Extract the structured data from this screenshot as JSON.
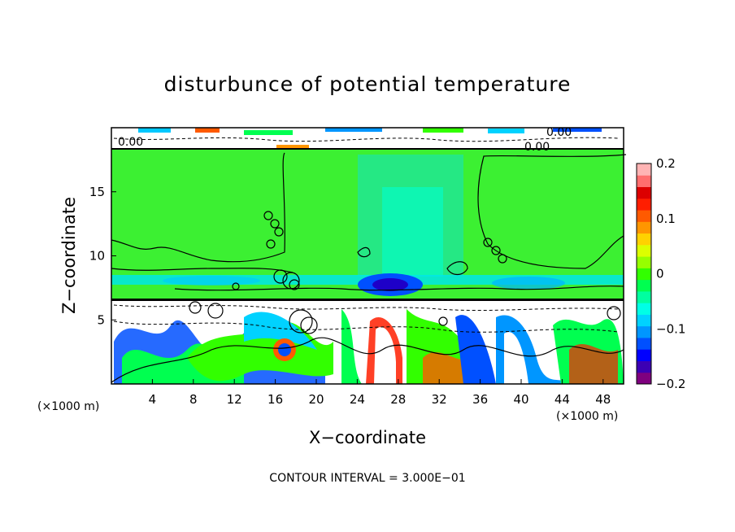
{
  "chart_data": {
    "type": "heatmap",
    "title": "disturbunce of potential temperature",
    "xlabel": "X−coordinate",
    "ylabel": "Z−coordinate",
    "x_unit_label": "(×1000 m)",
    "x_unit_label_right": "(×1000 m)",
    "xlim": [
      0,
      50
    ],
    "ylim": [
      0,
      20
    ],
    "x_ticks": [
      4,
      8,
      12,
      16,
      20,
      24,
      28,
      32,
      36,
      40,
      44,
      48
    ],
    "x_tick_labels": [
      "4",
      "8",
      "12",
      "16",
      "20",
      "24",
      "28",
      "32",
      "36",
      "40",
      "44",
      "48"
    ],
    "y_ticks": [
      5,
      10,
      15
    ],
    "y_tick_labels": [
      "5",
      "10",
      "15"
    ],
    "colorbar": {
      "range": [
        -0.2,
        0.2
      ],
      "ticks": [
        0.2,
        0.1,
        0,
        -0.1,
        -0.2
      ],
      "tick_labels": [
        "0.2",
        "0.1",
        "0",
        "−0.1",
        "−0.2"
      ],
      "colors": [
        "#7f007f",
        "#3c00b4",
        "#0000ff",
        "#0050ff",
        "#0096ff",
        "#00d2ff",
        "#00ffe6",
        "#00ffa0",
        "#00ff50",
        "#32ff00",
        "#96ff00",
        "#dcff00",
        "#ffd200",
        "#ff9600",
        "#ff5a00",
        "#ff1e00",
        "#dc0000",
        "#ff6e6e",
        "#ffb4b4"
      ]
    },
    "contour_interval_text": "CONTOUR INTERVAL = 3.000E−01",
    "annotations": [
      "0.00",
      "0.00",
      "0.00"
    ]
  }
}
